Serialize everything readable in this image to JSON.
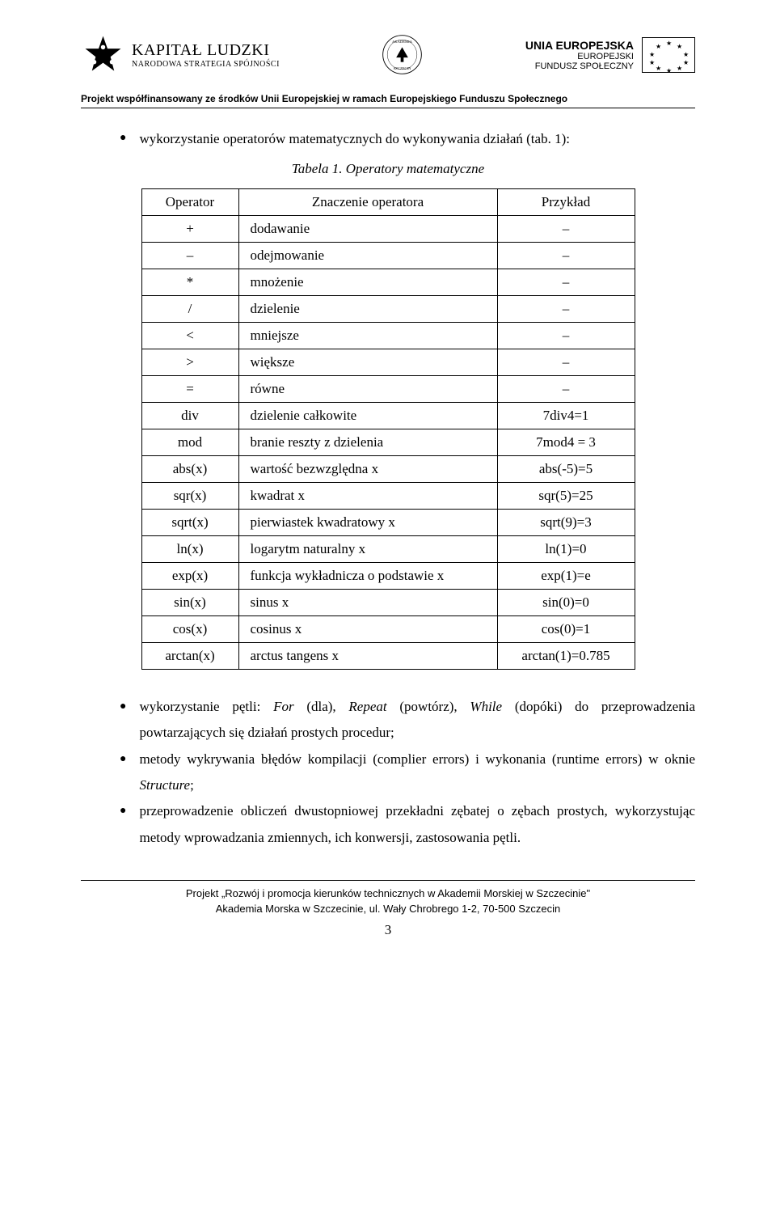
{
  "header": {
    "kl_title": "KAPITAŁ LUDZKI",
    "kl_sub": "NARODOWA STRATEGIA SPÓJNOŚCI",
    "eu_title": "UNIA EUROPEJSKA",
    "eu_sub1": "EUROPEJSKI",
    "eu_sub2": "FUNDUSZ SPOŁECZNY"
  },
  "funding_line": "Projekt współfinansowany ze środków Unii Europejskiej w ramach Europejskiego Funduszu Społecznego",
  "intro_bullet": "wykorzystanie operatorów matematycznych do wykonywania działań (tab. 1):",
  "table_caption": "Tabela 1. Operatory matematyczne",
  "table": {
    "headers": [
      "Operator",
      "Znaczenie operatora",
      "Przykład"
    ],
    "col_widths": [
      "120px",
      "320px",
      "170px"
    ],
    "rows": [
      {
        "op": "+",
        "meaning": "dodawanie",
        "ex": "–"
      },
      {
        "op": "–",
        "meaning": "odejmowanie",
        "ex": "–"
      },
      {
        "op": "*",
        "meaning": "mnożenie",
        "ex": "–"
      },
      {
        "op": "/",
        "meaning": "dzielenie",
        "ex": "–"
      },
      {
        "op": "<",
        "meaning": "mniejsze",
        "ex": "–"
      },
      {
        "op": ">",
        "meaning": "większe",
        "ex": "–"
      },
      {
        "op": "=",
        "meaning": "równe",
        "ex": "–"
      },
      {
        "op": "div",
        "meaning": "dzielenie całkowite",
        "ex": "7div4=1"
      },
      {
        "op": "mod",
        "meaning": "branie reszty z dzielenia",
        "ex": "7mod4 = 3"
      },
      {
        "op": "abs(x)",
        "meaning": "wartość bezwzględna x",
        "ex": "abs(-5)=5"
      },
      {
        "op": "sqr(x)",
        "meaning": "kwadrat x",
        "ex": "sqr(5)=25"
      },
      {
        "op": "sqrt(x)",
        "meaning": "pierwiastek kwadratowy x",
        "ex": "sqrt(9)=3"
      },
      {
        "op": "ln(x)",
        "meaning": "logarytm naturalny x",
        "ex": "ln(1)=0"
      },
      {
        "op": "exp(x)",
        "meaning": "funkcja wykładnicza o podstawie x",
        "ex": "exp(1)=e"
      },
      {
        "op": "sin(x)",
        "meaning": "sinus x",
        "ex": "sin(0)=0"
      },
      {
        "op": "cos(x)",
        "meaning": "cosinus x",
        "ex": "cos(0)=1"
      },
      {
        "op": "arctan(x)",
        "meaning": "arctus tangens x",
        "ex": "arctan(1)=0.785"
      }
    ]
  },
  "bullets": [
    {
      "pre": "wykorzystanie pętli: ",
      "i1": "For",
      "m1": " (dla), ",
      "i2": "Repeat",
      "m2": " (powtórz), ",
      "i3": "While",
      "post": " (dopóki) do przeprowadzenia powtarzających się działań prostych procedur;"
    },
    {
      "pre": "metody wykrywania błędów kompilacji (complier errors) i wykonania (runtime errors) w oknie ",
      "i1": "Structure",
      "post": ";"
    },
    {
      "text": "przeprowadzenie obliczeń dwustopniowej przekładni zębatej o zębach prostych, wykorzystując metody wprowadzania zmiennych, ich konwersji, zastosowania pętli."
    }
  ],
  "footer": {
    "line1": "Projekt „Rozwój i promocja kierunków technicznych w Akademii Morskiej w Szczecinie\"",
    "line2": "Akademia Morska w Szczecinie, ul. Wały Chrobrego 1-2, 70-500 Szczecin",
    "page": "3"
  },
  "colors": {
    "text": "#000000",
    "bg": "#ffffff",
    "border": "#000000"
  }
}
